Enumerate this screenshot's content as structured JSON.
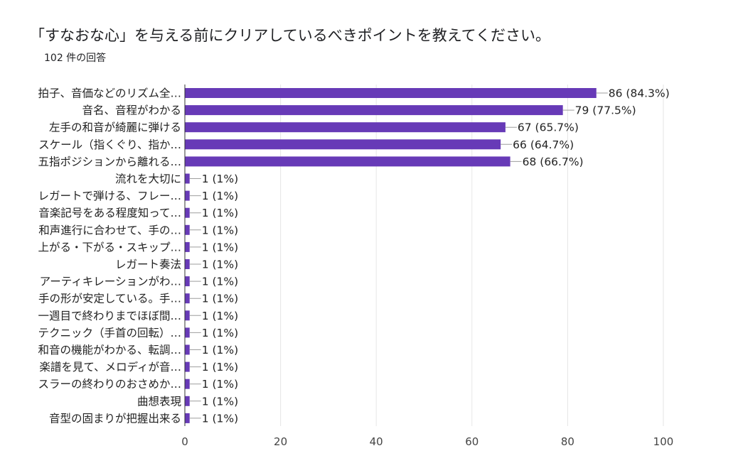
{
  "title": "「すなおな心」を与える前にクリアしているべきポイントを教えてください。",
  "response_count": "102 件の回答",
  "chart_data": {
    "type": "bar",
    "orientation": "horizontal",
    "categories": [
      "拍子、音価などのリズム全…",
      "音名、音程がわかる",
      "左手の和音が綺麗に弾ける",
      "スケール（指くぐり、指か…",
      "五指ポジションから離れる…",
      "流れを大切に",
      "レガートで弾ける、フレー…",
      "音楽記号をある程度知って…",
      "和声進行に合わせて、手の…",
      "上がる・下がる・スキップ…",
      "レガート奏法",
      "アーティキレーションがわ…",
      "手の形が安定している。手…",
      "一週目で終わりまでほぼ間…",
      "テクニック（手首の回転）…",
      "和音の機能がわかる、転調…",
      "楽譜を見て、メロディが音…",
      "スラーの終わりのおさめか…",
      "曲想表現",
      "音型の固まりが把握出来る"
    ],
    "values": [
      86,
      79,
      67,
      66,
      68,
      1,
      1,
      1,
      1,
      1,
      1,
      1,
      1,
      1,
      1,
      1,
      1,
      1,
      1,
      1
    ],
    "data_labels": [
      "86 (84.3%)",
      "79 (77.5%)",
      "67 (65.7%)",
      "66 (64.7%)",
      "68 (66.7%)",
      "1 (1%)",
      "1 (1%)",
      "1 (1%)",
      "1 (1%)",
      "1 (1%)",
      "1 (1%)",
      "1 (1%)",
      "1 (1%)",
      "1 (1%)",
      "1 (1%)",
      "1 (1%)",
      "1 (1%)",
      "1 (1%)",
      "1 (1%)",
      "1 (1%)"
    ],
    "xlim": [
      0,
      100
    ],
    "xticks": [
      0,
      20,
      40,
      60,
      80,
      100
    ],
    "grid": true,
    "bar_color": "#673ab7"
  }
}
